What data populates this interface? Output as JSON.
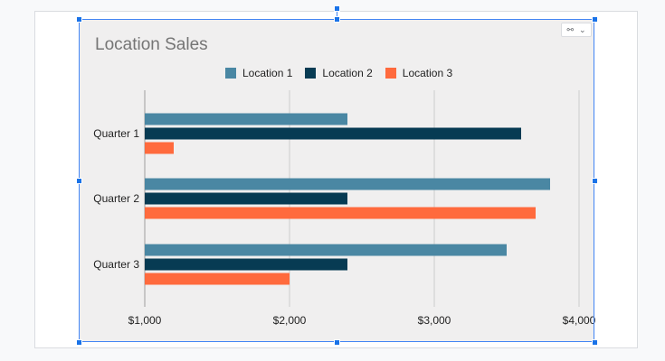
{
  "chart_data": {
    "type": "bar",
    "orientation": "horizontal",
    "title": "Location Sales",
    "categories": [
      "Quarter 1",
      "Quarter 2",
      "Quarter 3"
    ],
    "series": [
      {
        "name": "Location 1",
        "color": "#4a87a3",
        "values": [
          2400,
          3800,
          3500
        ]
      },
      {
        "name": "Location 2",
        "color": "#073b53",
        "values": [
          3600,
          2400,
          2400
        ]
      },
      {
        "name": "Location 3",
        "color": "#ff6a3d",
        "values": [
          1200,
          3700,
          2000
        ]
      }
    ],
    "xlim": [
      1000,
      4000
    ],
    "xticks": [
      1000,
      2000,
      3000,
      4000
    ],
    "xtick_labels": [
      "$1,000",
      "$2,000",
      "$3,000",
      "$4,000"
    ],
    "xlabel": "",
    "ylabel": "",
    "grid": "vertical",
    "legend_position": "top"
  },
  "link_control": {
    "icon": "link-icon",
    "dropdown_icon": "chevron-down-icon",
    "link_glyph": "⚯",
    "chevron_glyph": "⌄"
  }
}
